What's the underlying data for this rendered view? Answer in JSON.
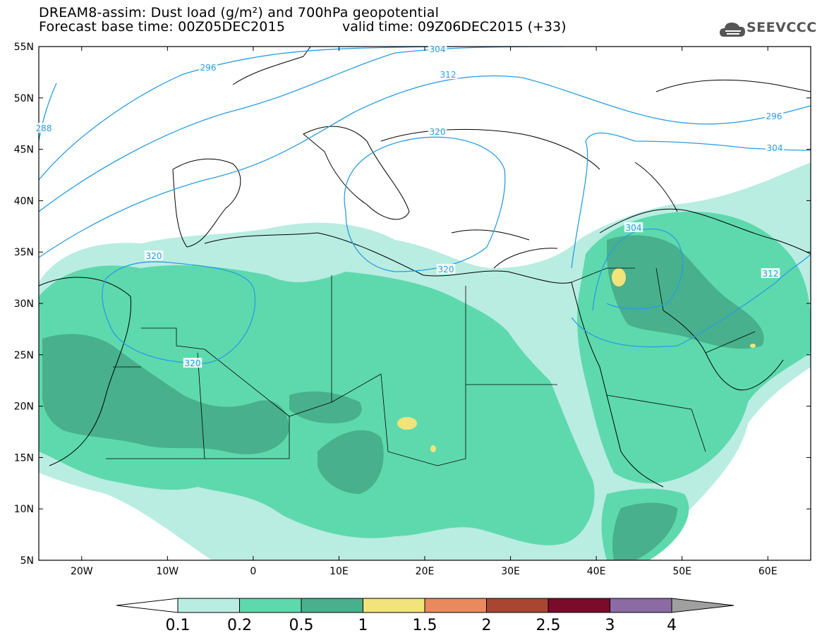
{
  "header": {
    "title": "DREAM8-assim: Dust load (g/m²) and 700hPa geopotential",
    "base_time": "Forecast base time: 00Z05DEC2015",
    "valid_time": "valid time: 09Z06DEC2015 (+33)",
    "logo_text": "SEEVCCC"
  },
  "map": {
    "lat_labels": [
      "55N",
      "50N",
      "45N",
      "40N",
      "35N",
      "30N",
      "25N",
      "20N",
      "15N",
      "10N",
      "5N"
    ],
    "lon_labels": [
      "20W",
      "10W",
      "0",
      "10E",
      "20E",
      "30E",
      "40E",
      "50E",
      "60E"
    ],
    "contour_labels": [
      "288",
      "296",
      "304",
      "312",
      "320",
      "320",
      "320",
      "304",
      "312",
      "296",
      "304"
    ],
    "palette": {
      "c1": "#b9ede2",
      "c2": "#5ed9ad",
      "c3": "#48b08c",
      "c4": "#f2e47a",
      "c5": "#e98a5e",
      "c6": "#a94632",
      "c7": "#7a0b2b",
      "c8": "#8c6aa4",
      "c9": "#a0a0a0",
      "contour": "#2a9de0"
    }
  },
  "colorbar": {
    "labels": [
      "0.1",
      "0.2",
      "0.5",
      "1",
      "1.5",
      "2",
      "2.5",
      "3",
      "4"
    ],
    "colors": [
      "#ffffff",
      "#b9ede2",
      "#5ed9ad",
      "#48b08c",
      "#f2e47a",
      "#e98a5e",
      "#a94632",
      "#7a0b2b",
      "#8c6aa4",
      "#a0a0a0"
    ]
  }
}
